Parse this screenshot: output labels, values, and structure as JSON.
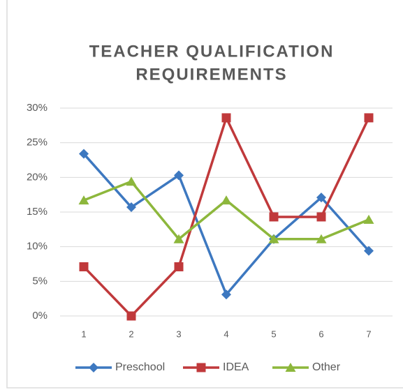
{
  "chart_data": {
    "type": "line",
    "title": [
      "TEACHER QUALIFICATION",
      "REQUIREMENTS"
    ],
    "categories": [
      "1",
      "2",
      "3",
      "4",
      "5",
      "6",
      "7"
    ],
    "series": [
      {
        "name": "Preschool",
        "color": "#3d78c0",
        "marker": "diamond",
        "values": [
          23.4,
          15.7,
          20.3,
          3.1,
          11.1,
          17.1,
          9.4
        ]
      },
      {
        "name": "IDEA",
        "color": "#c0393b",
        "marker": "square",
        "values": [
          7.1,
          0,
          7.1,
          28.6,
          14.3,
          14.3,
          28.6
        ]
      },
      {
        "name": "Other",
        "color": "#8db73c",
        "marker": "triangle",
        "values": [
          16.7,
          19.4,
          11.1,
          16.7,
          11.1,
          11.1,
          13.9
        ]
      }
    ],
    "ylim": [
      0,
      30
    ],
    "yticks": [
      {
        "value": 0,
        "label": "0%"
      },
      {
        "value": 5,
        "label": "5%"
      },
      {
        "value": 10,
        "label": "10%"
      },
      {
        "value": 15,
        "label": "15%"
      },
      {
        "value": 20,
        "label": "20%"
      },
      {
        "value": 25,
        "label": "25%"
      },
      {
        "value": 30,
        "label": "30%"
      }
    ],
    "grid": true,
    "legend": "bottom"
  }
}
